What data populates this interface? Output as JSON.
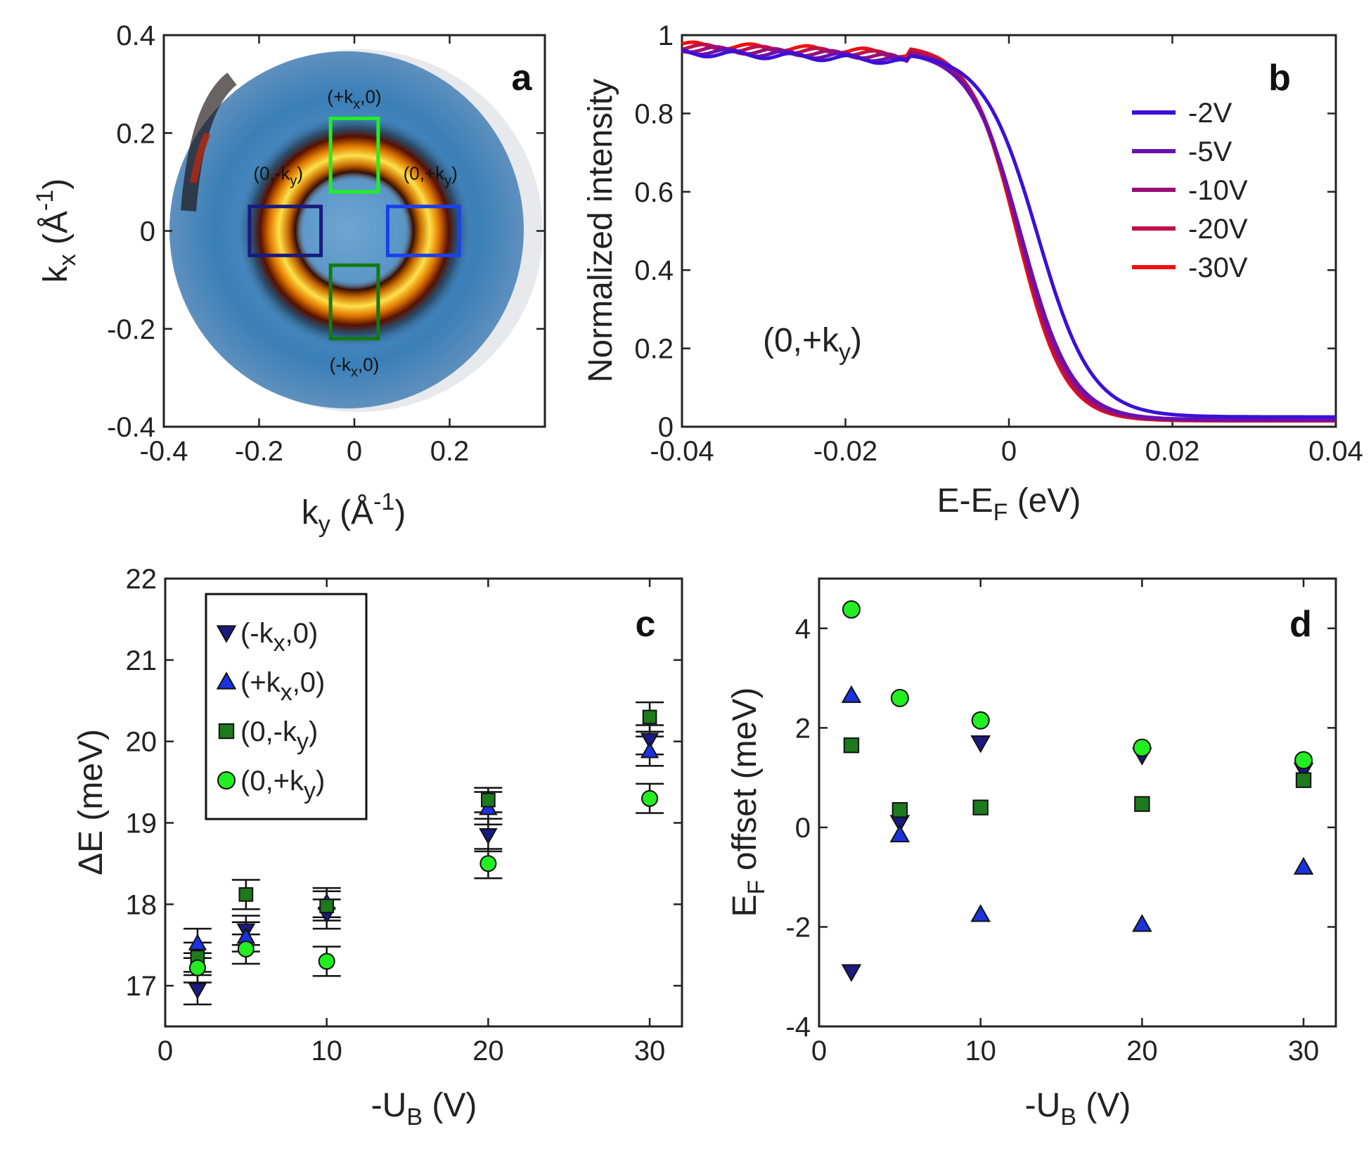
{
  "chart_data": [
    {
      "panel": "a",
      "type": "heatmap",
      "xlabel": "k",
      "xlabel_sub": "y",
      "xlabel_unit": "(Å",
      "xlabel_sup": "-1",
      "xlabel_close": ")",
      "ylabel": "k",
      "ylabel_sub": "x",
      "ylabel_unit": "(Å",
      "ylabel_sup": "-1",
      "ylabel_close": ")",
      "xlim": [
        -0.4,
        0.4
      ],
      "ylim": [
        -0.4,
        0.4
      ],
      "xticks": [
        -0.4,
        -0.2,
        0,
        0.2
      ],
      "xtick_labels": [
        "-0.4",
        "-0.2",
        "0",
        "0.2"
      ],
      "yticks": [
        -0.4,
        -0.2,
        0,
        0.2,
        0.4
      ],
      "ytick_labels": [
        "-0.4",
        "-0.2",
        "0",
        "0.2",
        "0.4"
      ],
      "ring_radius": 0.15,
      "boxes": [
        {
          "name": "(+kx,0)",
          "label_pre": "(+k",
          "label_sub": "x",
          "label_post": ",0)",
          "color": "#22ee22",
          "x0": -0.05,
          "x1": 0.05,
          "y0": 0.08,
          "y1": 0.23
        },
        {
          "name": "(-kx,0)",
          "label_pre": "(-k",
          "label_sub": "x",
          "label_post": ",0)",
          "color": "#137a13",
          "x0": -0.05,
          "x1": 0.05,
          "y0": -0.22,
          "y1": -0.07
        },
        {
          "name": "(0,-ky)",
          "label_pre": "(0,-k",
          "label_sub": "y",
          "label_post": ")",
          "color": "#1a1a80",
          "x0": -0.22,
          "x1": -0.07,
          "y0": -0.05,
          "y1": 0.05
        },
        {
          "name": "(0,+ky)",
          "label_pre": "(0,+k",
          "label_sub": "y",
          "label_post": ")",
          "color": "#1a40ee",
          "x0": 0.07,
          "x1": 0.22,
          "y0": -0.05,
          "y1": 0.05
        }
      ]
    },
    {
      "panel": "b",
      "type": "line",
      "xlabel": "E-E",
      "xlabel_sub": "F",
      "xlabel_post": " (eV)",
      "ylabel": "Normalized intensity",
      "xlim": [
        -0.04,
        0.04
      ],
      "ylim": [
        0,
        1
      ],
      "xticks": [
        -0.04,
        -0.02,
        0,
        0.02,
        0.04
      ],
      "xtick_labels": [
        "-0.04",
        "-0.02",
        "0",
        "0.02",
        "0.04"
      ],
      "yticks": [
        0,
        0.2,
        0.4,
        0.6,
        0.8,
        1
      ],
      "ytick_labels": [
        "0",
        "0.2",
        "0.4",
        "0.6",
        "0.8",
        "1"
      ],
      "annotation_pre": "(0,+k",
      "annotation_sub": "y",
      "annotation_post": ")",
      "series": [
        {
          "name": "-2V",
          "color": "#3b10d8",
          "mu": 0.0035,
          "kT": 0.0033,
          "lo": 0.025,
          "hi": 0.955
        },
        {
          "name": "-5V",
          "color": "#6a10b0",
          "mu": 0.0015,
          "kT": 0.0031,
          "lo": 0.018,
          "hi": 0.96
        },
        {
          "name": "-10V",
          "color": "#961078",
          "mu": 0.0013,
          "kT": 0.003,
          "lo": 0.017,
          "hi": 0.965
        },
        {
          "name": "-20V",
          "color": "#c01048",
          "mu": 0.0012,
          "kT": 0.0029,
          "lo": 0.016,
          "hi": 0.97
        },
        {
          "name": "-30V",
          "color": "#ee1010",
          "mu": 0.001,
          "kT": 0.0029,
          "lo": 0.015,
          "hi": 0.975
        }
      ]
    },
    {
      "panel": "c",
      "type": "scatter",
      "xlabel": "-U",
      "xlabel_sub": "B",
      "xlabel_post": " (V)",
      "ylabel": "ΔE (meV)",
      "xlim": [
        0,
        32
      ],
      "ylim": [
        16.5,
        22
      ],
      "xticks": [
        0,
        10,
        20,
        30
      ],
      "xtick_labels": [
        "0",
        "10",
        "20",
        "30"
      ],
      "yticks": [
        17,
        18,
        19,
        20,
        21,
        22
      ],
      "ytick_labels": [
        "17",
        "18",
        "19",
        "20",
        "21",
        "22"
      ],
      "series": [
        {
          "name": "(-kx,0)",
          "label_pre": "(-k",
          "label_sub": "x",
          "label_post": ",0)",
          "marker": "triangle-down",
          "color": "#1a1a80",
          "x": [
            2,
            5,
            10,
            20,
            30
          ],
          "y": [
            16.95,
            17.68,
            17.88,
            18.85,
            20.02
          ],
          "err": [
            0.18,
            0.18,
            0.18,
            0.2,
            0.18
          ]
        },
        {
          "name": "(+kx,0)",
          "label_pre": "(+k",
          "label_sub": "x",
          "label_post": ",0)",
          "marker": "triangle-up",
          "color": "#1a33dd",
          "x": [
            2,
            5,
            10,
            20,
            30
          ],
          "y": [
            17.52,
            17.6,
            18.02,
            19.18,
            19.88
          ],
          "err": [
            0.18,
            0.18,
            0.18,
            0.2,
            0.18
          ]
        },
        {
          "name": "(0,-ky)",
          "label_pre": "(0,-k",
          "label_sub": "y",
          "label_post": ")",
          "marker": "square",
          "color": "#1d7a1d",
          "x": [
            2,
            5,
            10,
            20,
            30
          ],
          "y": [
            17.35,
            18.12,
            17.98,
            19.28,
            20.3
          ],
          "err": [
            0.18,
            0.18,
            0.18,
            0.15,
            0.18
          ]
        },
        {
          "name": "(0,+ky)",
          "label_pre": "(0,+k",
          "label_sub": "y",
          "label_post": ")",
          "marker": "circle",
          "color": "#22ee22",
          "x": [
            2,
            5,
            10,
            20,
            30
          ],
          "y": [
            17.22,
            17.45,
            17.3,
            18.5,
            19.3
          ],
          "err": [
            0.18,
            0.18,
            0.18,
            0.18,
            0.18
          ]
        }
      ]
    },
    {
      "panel": "d",
      "type": "scatter",
      "xlabel": "-U",
      "xlabel_sub": "B",
      "xlabel_post": " (V)",
      "ylabel": "E",
      "ylabel_sub": "F",
      "ylabel_post": " offset (meV)",
      "xlim": [
        0,
        32
      ],
      "ylim": [
        -4,
        5
      ],
      "xticks": [
        0,
        10,
        20,
        30
      ],
      "xtick_labels": [
        "0",
        "10",
        "20",
        "30"
      ],
      "yticks": [
        -4,
        -2,
        0,
        2,
        4
      ],
      "ytick_labels": [
        "-4",
        "-2",
        "0",
        "2",
        "4"
      ],
      "series": [
        {
          "name": "(-kx,0)",
          "marker": "triangle-down",
          "color": "#1a1a80",
          "x": [
            2,
            5,
            10,
            20,
            30
          ],
          "y": [
            -2.9,
            0.1,
            1.7,
            1.45,
            1.15
          ]
        },
        {
          "name": "(+kx,0)",
          "marker": "triangle-up",
          "color": "#1a33dd",
          "x": [
            2,
            5,
            10,
            20,
            30
          ],
          "y": [
            2.65,
            -0.15,
            -1.75,
            -1.95,
            -0.8
          ]
        },
        {
          "name": "(0,-ky)",
          "marker": "square",
          "color": "#1d7a1d",
          "x": [
            2,
            5,
            10,
            20,
            30
          ],
          "y": [
            1.65,
            0.35,
            0.4,
            0.47,
            0.95
          ]
        },
        {
          "name": "(0,+ky)",
          "marker": "circle",
          "color": "#22ee22",
          "x": [
            2,
            5,
            10,
            20,
            30
          ],
          "y": [
            4.38,
            2.6,
            2.15,
            1.6,
            1.35
          ]
        }
      ]
    }
  ]
}
